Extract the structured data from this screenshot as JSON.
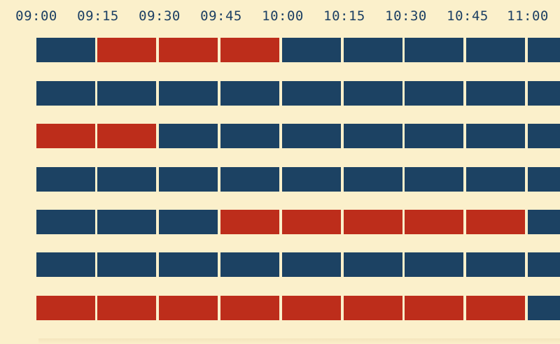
{
  "timeline": {
    "times": [
      "09:00",
      "09:15",
      "09:30",
      "09:45",
      "10:00",
      "10:15",
      "10:30",
      "10:45",
      "11:00"
    ]
  },
  "colors": {
    "background": "#fbf0cb",
    "available": "#1c4263",
    "booked": "#bd2d1b",
    "text": "#1c3f63"
  },
  "rows": [
    {
      "slots": [
        "available",
        "booked",
        "booked",
        "booked",
        "available",
        "available",
        "available",
        "available",
        "available"
      ]
    },
    {
      "slots": [
        "available",
        "available",
        "available",
        "available",
        "available",
        "available",
        "available",
        "available",
        "available"
      ]
    },
    {
      "slots": [
        "booked",
        "booked",
        "available",
        "available",
        "available",
        "available",
        "available",
        "available",
        "available"
      ]
    },
    {
      "slots": [
        "available",
        "available",
        "available",
        "available",
        "available",
        "available",
        "available",
        "available",
        "available"
      ]
    },
    {
      "slots": [
        "available",
        "available",
        "available",
        "booked",
        "booked",
        "booked",
        "booked",
        "booked",
        "available"
      ]
    },
    {
      "slots": [
        "available",
        "available",
        "available",
        "available",
        "available",
        "available",
        "available",
        "available",
        "available"
      ]
    },
    {
      "slots": [
        "booked",
        "booked",
        "booked",
        "booked",
        "booked",
        "booked",
        "booked",
        "booked",
        "available"
      ]
    }
  ]
}
